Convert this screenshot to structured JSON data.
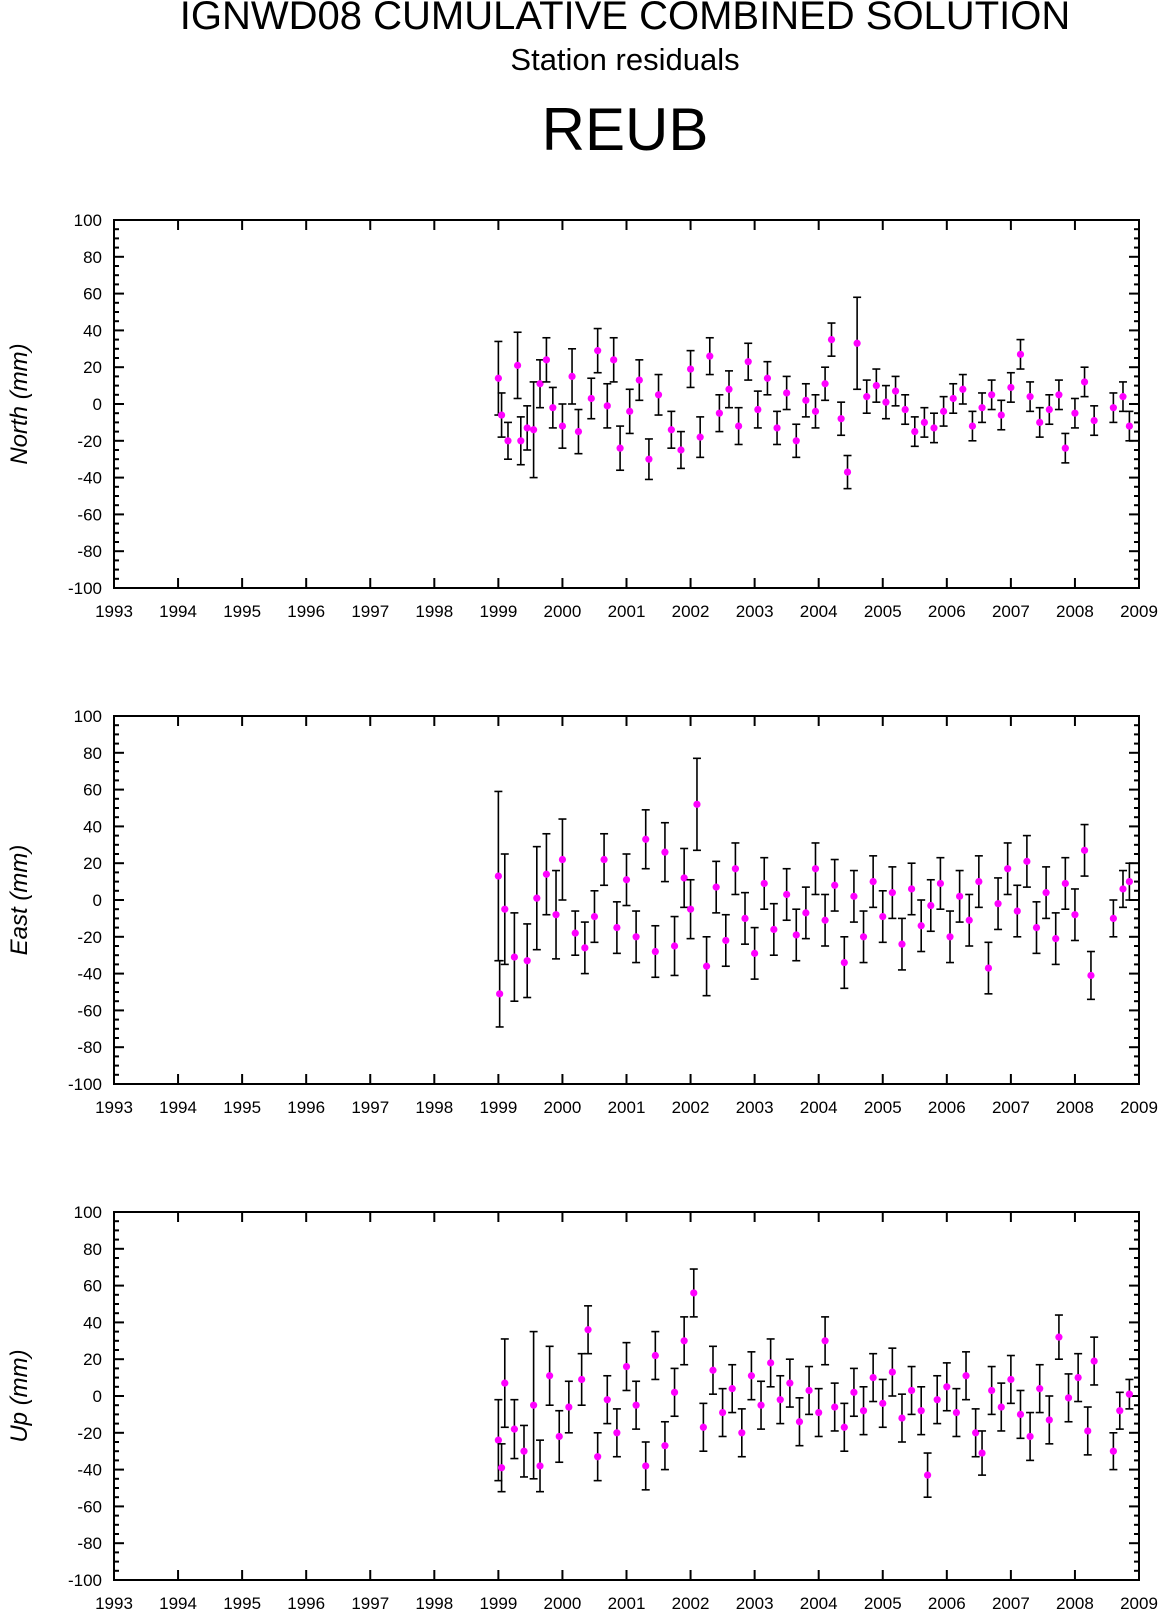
{
  "header": {
    "title": "IGNWD08 CUMULATIVE COMBINED SOLUTION",
    "subtitle": "Station residuals",
    "station": "REUB"
  },
  "colors": {
    "marker": "#ff00ff",
    "errorbar": "#000000",
    "frame": "#000000"
  },
  "chart_data": [
    {
      "type": "scatter",
      "ylabel": "North (mm)",
      "ylim": [
        -100,
        100
      ],
      "yticks": [
        100,
        80,
        60,
        40,
        20,
        0,
        -20,
        -40,
        -60,
        -80,
        -100
      ],
      "xlim": [
        1993,
        2009
      ],
      "xticks": [
        1993,
        1994,
        1995,
        1996,
        1997,
        1998,
        1999,
        2000,
        2001,
        2002,
        2003,
        2004,
        2005,
        2006,
        2007,
        2008,
        2009
      ],
      "points": [
        {
          "x": 1999.0,
          "y": 14,
          "err": 20
        },
        {
          "x": 1999.05,
          "y": -6,
          "err": 12
        },
        {
          "x": 1999.15,
          "y": -20,
          "err": 10
        },
        {
          "x": 1999.3,
          "y": 21,
          "err": 18
        },
        {
          "x": 1999.35,
          "y": -20,
          "err": 13
        },
        {
          "x": 1999.45,
          "y": -13,
          "err": 12
        },
        {
          "x": 1999.55,
          "y": -14,
          "err": 26
        },
        {
          "x": 1999.65,
          "y": 11,
          "err": 13
        },
        {
          "x": 1999.75,
          "y": 24,
          "err": 12
        },
        {
          "x": 1999.85,
          "y": -2,
          "err": 11
        },
        {
          "x": 2000.0,
          "y": -12,
          "err": 12
        },
        {
          "x": 2000.15,
          "y": 15,
          "err": 15
        },
        {
          "x": 2000.25,
          "y": -15,
          "err": 12
        },
        {
          "x": 2000.45,
          "y": 3,
          "err": 11
        },
        {
          "x": 2000.55,
          "y": 29,
          "err": 12
        },
        {
          "x": 2000.7,
          "y": -1,
          "err": 12
        },
        {
          "x": 2000.8,
          "y": 24,
          "err": 12
        },
        {
          "x": 2000.9,
          "y": -24,
          "err": 12
        },
        {
          "x": 2001.05,
          "y": -4,
          "err": 12
        },
        {
          "x": 2001.2,
          "y": 13,
          "err": 11
        },
        {
          "x": 2001.35,
          "y": -30,
          "err": 11
        },
        {
          "x": 2001.5,
          "y": 5,
          "err": 11
        },
        {
          "x": 2001.7,
          "y": -14,
          "err": 10
        },
        {
          "x": 2001.85,
          "y": -25,
          "err": 10
        },
        {
          "x": 2002.0,
          "y": 19,
          "err": 10
        },
        {
          "x": 2002.15,
          "y": -18,
          "err": 11
        },
        {
          "x": 2002.3,
          "y": 26,
          "err": 10
        },
        {
          "x": 2002.45,
          "y": -5,
          "err": 10
        },
        {
          "x": 2002.6,
          "y": 8,
          "err": 10
        },
        {
          "x": 2002.75,
          "y": -12,
          "err": 10
        },
        {
          "x": 2002.9,
          "y": 23,
          "err": 10
        },
        {
          "x": 2003.05,
          "y": -3,
          "err": 10
        },
        {
          "x": 2003.2,
          "y": 14,
          "err": 9
        },
        {
          "x": 2003.35,
          "y": -13,
          "err": 9
        },
        {
          "x": 2003.5,
          "y": 6,
          "err": 9
        },
        {
          "x": 2003.65,
          "y": -20,
          "err": 9
        },
        {
          "x": 2003.8,
          "y": 2,
          "err": 9
        },
        {
          "x": 2003.95,
          "y": -4,
          "err": 9
        },
        {
          "x": 2004.1,
          "y": 11,
          "err": 9
        },
        {
          "x": 2004.2,
          "y": 35,
          "err": 9
        },
        {
          "x": 2004.35,
          "y": -8,
          "err": 9
        },
        {
          "x": 2004.45,
          "y": -37,
          "err": 9
        },
        {
          "x": 2004.6,
          "y": 33,
          "err": 25
        },
        {
          "x": 2004.75,
          "y": 4,
          "err": 9
        },
        {
          "x": 2004.9,
          "y": 10,
          "err": 9
        },
        {
          "x": 2005.05,
          "y": 1,
          "err": 9
        },
        {
          "x": 2005.2,
          "y": 7,
          "err": 8
        },
        {
          "x": 2005.35,
          "y": -3,
          "err": 8
        },
        {
          "x": 2005.5,
          "y": -15,
          "err": 8
        },
        {
          "x": 2005.65,
          "y": -10,
          "err": 8
        },
        {
          "x": 2005.8,
          "y": -13,
          "err": 8
        },
        {
          "x": 2005.95,
          "y": -4,
          "err": 8
        },
        {
          "x": 2006.1,
          "y": 3,
          "err": 8
        },
        {
          "x": 2006.25,
          "y": 8,
          "err": 8
        },
        {
          "x": 2006.4,
          "y": -12,
          "err": 8
        },
        {
          "x": 2006.55,
          "y": -2,
          "err": 8
        },
        {
          "x": 2006.7,
          "y": 5,
          "err": 8
        },
        {
          "x": 2006.85,
          "y": -6,
          "err": 8
        },
        {
          "x": 2007.0,
          "y": 9,
          "err": 8
        },
        {
          "x": 2007.15,
          "y": 27,
          "err": 8
        },
        {
          "x": 2007.3,
          "y": 4,
          "err": 8
        },
        {
          "x": 2007.45,
          "y": -10,
          "err": 8
        },
        {
          "x": 2007.6,
          "y": -3,
          "err": 8
        },
        {
          "x": 2007.75,
          "y": 5,
          "err": 8
        },
        {
          "x": 2007.85,
          "y": -24,
          "err": 8
        },
        {
          "x": 2008.0,
          "y": -5,
          "err": 8
        },
        {
          "x": 2008.15,
          "y": 12,
          "err": 8
        },
        {
          "x": 2008.3,
          "y": -9,
          "err": 8
        },
        {
          "x": 2008.6,
          "y": -2,
          "err": 8
        },
        {
          "x": 2008.75,
          "y": 4,
          "err": 8
        },
        {
          "x": 2008.85,
          "y": -12,
          "err": 8
        }
      ]
    },
    {
      "type": "scatter",
      "ylabel": "East (mm)",
      "ylim": [
        -100,
        100
      ],
      "yticks": [
        100,
        80,
        60,
        40,
        20,
        0,
        -20,
        -40,
        -60,
        -80,
        -100
      ],
      "xlim": [
        1993,
        2009
      ],
      "xticks": [
        1993,
        1994,
        1995,
        1996,
        1997,
        1998,
        1999,
        2000,
        2001,
        2002,
        2003,
        2004,
        2005,
        2006,
        2007,
        2008,
        2009
      ],
      "points": [
        {
          "x": 1999.0,
          "y": 13,
          "err": 46
        },
        {
          "x": 1999.02,
          "y": -51,
          "err": 18
        },
        {
          "x": 1999.1,
          "y": -5,
          "err": 30
        },
        {
          "x": 1999.25,
          "y": -31,
          "err": 24
        },
        {
          "x": 1999.45,
          "y": -33,
          "err": 20
        },
        {
          "x": 1999.6,
          "y": 1,
          "err": 28
        },
        {
          "x": 1999.75,
          "y": 14,
          "err": 22
        },
        {
          "x": 1999.9,
          "y": -8,
          "err": 24
        },
        {
          "x": 2000.0,
          "y": 22,
          "err": 22
        },
        {
          "x": 2000.2,
          "y": -18,
          "err": 12
        },
        {
          "x": 2000.35,
          "y": -26,
          "err": 14
        },
        {
          "x": 2000.5,
          "y": -9,
          "err": 14
        },
        {
          "x": 2000.65,
          "y": 22,
          "err": 14
        },
        {
          "x": 2000.85,
          "y": -15,
          "err": 14
        },
        {
          "x": 2001.0,
          "y": 11,
          "err": 14
        },
        {
          "x": 2001.15,
          "y": -20,
          "err": 14
        },
        {
          "x": 2001.3,
          "y": 33,
          "err": 16
        },
        {
          "x": 2001.45,
          "y": -28,
          "err": 14
        },
        {
          "x": 2001.6,
          "y": 26,
          "err": 16
        },
        {
          "x": 2001.75,
          "y": -25,
          "err": 16
        },
        {
          "x": 2001.9,
          "y": 12,
          "err": 16
        },
        {
          "x": 2002.0,
          "y": -5,
          "err": 16
        },
        {
          "x": 2002.1,
          "y": 52,
          "err": 25
        },
        {
          "x": 2002.25,
          "y": -36,
          "err": 16
        },
        {
          "x": 2002.4,
          "y": 7,
          "err": 14
        },
        {
          "x": 2002.55,
          "y": -22,
          "err": 14
        },
        {
          "x": 2002.7,
          "y": 17,
          "err": 14
        },
        {
          "x": 2002.85,
          "y": -10,
          "err": 14
        },
        {
          "x": 2003.0,
          "y": -29,
          "err": 14
        },
        {
          "x": 2003.15,
          "y": 9,
          "err": 14
        },
        {
          "x": 2003.3,
          "y": -16,
          "err": 14
        },
        {
          "x": 2003.5,
          "y": 3,
          "err": 14
        },
        {
          "x": 2003.65,
          "y": -19,
          "err": 14
        },
        {
          "x": 2003.8,
          "y": -7,
          "err": 14
        },
        {
          "x": 2003.95,
          "y": 17,
          "err": 14
        },
        {
          "x": 2004.1,
          "y": -11,
          "err": 14
        },
        {
          "x": 2004.25,
          "y": 8,
          "err": 14
        },
        {
          "x": 2004.4,
          "y": -34,
          "err": 14
        },
        {
          "x": 2004.55,
          "y": 2,
          "err": 14
        },
        {
          "x": 2004.7,
          "y": -20,
          "err": 14
        },
        {
          "x": 2004.85,
          "y": 10,
          "err": 14
        },
        {
          "x": 2005.0,
          "y": -9,
          "err": 14
        },
        {
          "x": 2005.15,
          "y": 4,
          "err": 14
        },
        {
          "x": 2005.3,
          "y": -24,
          "err": 14
        },
        {
          "x": 2005.45,
          "y": 6,
          "err": 14
        },
        {
          "x": 2005.6,
          "y": -14,
          "err": 14
        },
        {
          "x": 2005.75,
          "y": -3,
          "err": 14
        },
        {
          "x": 2005.9,
          "y": 9,
          "err": 14
        },
        {
          "x": 2006.05,
          "y": -20,
          "err": 14
        },
        {
          "x": 2006.2,
          "y": 2,
          "err": 14
        },
        {
          "x": 2006.35,
          "y": -11,
          "err": 14
        },
        {
          "x": 2006.5,
          "y": 10,
          "err": 14
        },
        {
          "x": 2006.65,
          "y": -37,
          "err": 14
        },
        {
          "x": 2006.8,
          "y": -2,
          "err": 14
        },
        {
          "x": 2006.95,
          "y": 17,
          "err": 14
        },
        {
          "x": 2007.1,
          "y": -6,
          "err": 14
        },
        {
          "x": 2007.25,
          "y": 21,
          "err": 14
        },
        {
          "x": 2007.4,
          "y": -15,
          "err": 14
        },
        {
          "x": 2007.55,
          "y": 4,
          "err": 14
        },
        {
          "x": 2007.7,
          "y": -21,
          "err": 14
        },
        {
          "x": 2007.85,
          "y": 9,
          "err": 14
        },
        {
          "x": 2008.0,
          "y": -8,
          "err": 14
        },
        {
          "x": 2008.15,
          "y": 27,
          "err": 14
        },
        {
          "x": 2008.25,
          "y": -41,
          "err": 13
        },
        {
          "x": 2008.6,
          "y": -10,
          "err": 10
        },
        {
          "x": 2008.75,
          "y": 6,
          "err": 10
        },
        {
          "x": 2008.85,
          "y": 10,
          "err": 10
        }
      ]
    },
    {
      "type": "scatter",
      "ylabel": "Up (mm)",
      "ylim": [
        -100,
        100
      ],
      "yticks": [
        100,
        80,
        60,
        40,
        20,
        0,
        -20,
        -40,
        -60,
        -80,
        -100
      ],
      "xlim": [
        1993,
        2009
      ],
      "xticks": [
        1993,
        1994,
        1995,
        1996,
        1997,
        1998,
        1999,
        2000,
        2001,
        2002,
        2003,
        2004,
        2005,
        2006,
        2007,
        2008,
        2009
      ],
      "points": [
        {
          "x": 1999.0,
          "y": -24,
          "err": 22
        },
        {
          "x": 1999.05,
          "y": -39,
          "err": 13
        },
        {
          "x": 1999.1,
          "y": 7,
          "err": 24
        },
        {
          "x": 1999.25,
          "y": -18,
          "err": 16
        },
        {
          "x": 1999.4,
          "y": -30,
          "err": 14
        },
        {
          "x": 1999.55,
          "y": -5,
          "err": 40
        },
        {
          "x": 1999.65,
          "y": -38,
          "err": 14
        },
        {
          "x": 1999.8,
          "y": 11,
          "err": 16
        },
        {
          "x": 1999.95,
          "y": -22,
          "err": 14
        },
        {
          "x": 2000.1,
          "y": -6,
          "err": 14
        },
        {
          "x": 2000.3,
          "y": 9,
          "err": 14
        },
        {
          "x": 2000.4,
          "y": 36,
          "err": 13
        },
        {
          "x": 2000.55,
          "y": -33,
          "err": 13
        },
        {
          "x": 2000.7,
          "y": -2,
          "err": 13
        },
        {
          "x": 2000.85,
          "y": -20,
          "err": 13
        },
        {
          "x": 2001.0,
          "y": 16,
          "err": 13
        },
        {
          "x": 2001.15,
          "y": -5,
          "err": 13
        },
        {
          "x": 2001.3,
          "y": -38,
          "err": 13
        },
        {
          "x": 2001.45,
          "y": 22,
          "err": 13
        },
        {
          "x": 2001.6,
          "y": -27,
          "err": 13
        },
        {
          "x": 2001.75,
          "y": 2,
          "err": 13
        },
        {
          "x": 2001.9,
          "y": 30,
          "err": 13
        },
        {
          "x": 2002.05,
          "y": 56,
          "err": 13
        },
        {
          "x": 2002.2,
          "y": -17,
          "err": 13
        },
        {
          "x": 2002.35,
          "y": 14,
          "err": 13
        },
        {
          "x": 2002.5,
          "y": -9,
          "err": 13
        },
        {
          "x": 2002.65,
          "y": 4,
          "err": 13
        },
        {
          "x": 2002.8,
          "y": -20,
          "err": 13
        },
        {
          "x": 2002.95,
          "y": 11,
          "err": 13
        },
        {
          "x": 2003.1,
          "y": -5,
          "err": 13
        },
        {
          "x": 2003.25,
          "y": 18,
          "err": 13
        },
        {
          "x": 2003.4,
          "y": -2,
          "err": 13
        },
        {
          "x": 2003.55,
          "y": 7,
          "err": 13
        },
        {
          "x": 2003.7,
          "y": -14,
          "err": 13
        },
        {
          "x": 2003.85,
          "y": 3,
          "err": 13
        },
        {
          "x": 2004.0,
          "y": -9,
          "err": 13
        },
        {
          "x": 2004.1,
          "y": 30,
          "err": 13
        },
        {
          "x": 2004.25,
          "y": -6,
          "err": 13
        },
        {
          "x": 2004.4,
          "y": -17,
          "err": 13
        },
        {
          "x": 2004.55,
          "y": 2,
          "err": 13
        },
        {
          "x": 2004.7,
          "y": -8,
          "err": 13
        },
        {
          "x": 2004.85,
          "y": 10,
          "err": 13
        },
        {
          "x": 2005.0,
          "y": -4,
          "err": 13
        },
        {
          "x": 2005.15,
          "y": 13,
          "err": 13
        },
        {
          "x": 2005.3,
          "y": -12,
          "err": 13
        },
        {
          "x": 2005.45,
          "y": 3,
          "err": 13
        },
        {
          "x": 2005.6,
          "y": -8,
          "err": 13
        },
        {
          "x": 2005.7,
          "y": -43,
          "err": 12
        },
        {
          "x": 2005.85,
          "y": -2,
          "err": 13
        },
        {
          "x": 2006.0,
          "y": 5,
          "err": 13
        },
        {
          "x": 2006.15,
          "y": -9,
          "err": 13
        },
        {
          "x": 2006.3,
          "y": 11,
          "err": 13
        },
        {
          "x": 2006.45,
          "y": -20,
          "err": 13
        },
        {
          "x": 2006.55,
          "y": -31,
          "err": 12
        },
        {
          "x": 2006.7,
          "y": 3,
          "err": 13
        },
        {
          "x": 2006.85,
          "y": -6,
          "err": 13
        },
        {
          "x": 2007.0,
          "y": 9,
          "err": 13
        },
        {
          "x": 2007.15,
          "y": -10,
          "err": 13
        },
        {
          "x": 2007.3,
          "y": -22,
          "err": 13
        },
        {
          "x": 2007.45,
          "y": 4,
          "err": 13
        },
        {
          "x": 2007.6,
          "y": -13,
          "err": 13
        },
        {
          "x": 2007.75,
          "y": 32,
          "err": 12
        },
        {
          "x": 2007.9,
          "y": -1,
          "err": 13
        },
        {
          "x": 2008.05,
          "y": 10,
          "err": 13
        },
        {
          "x": 2008.2,
          "y": -19,
          "err": 13
        },
        {
          "x": 2008.3,
          "y": 19,
          "err": 13
        },
        {
          "x": 2008.6,
          "y": -30,
          "err": 10
        },
        {
          "x": 2008.7,
          "y": -8,
          "err": 10
        },
        {
          "x": 2008.85,
          "y": 1,
          "err": 8
        }
      ]
    }
  ]
}
